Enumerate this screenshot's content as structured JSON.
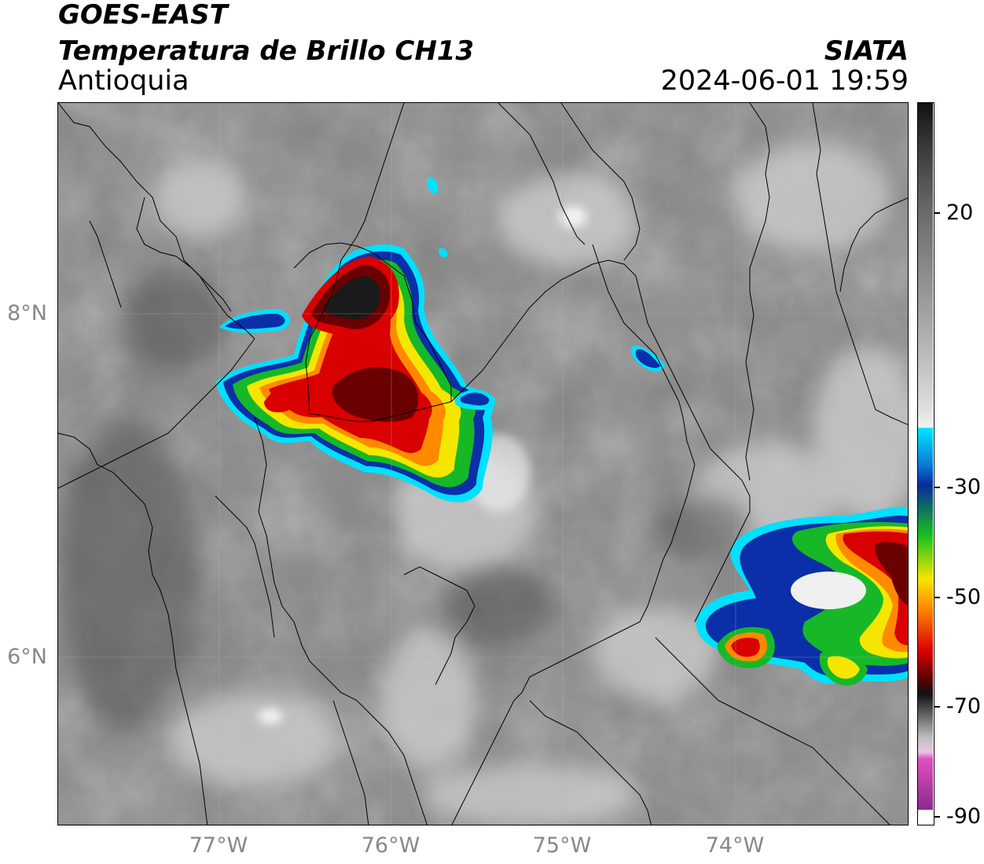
{
  "header": {
    "satellite": "GOES-EAST",
    "product": "Temperatura de Brillo CH13",
    "region": "Antioquia",
    "agency": "SIATA",
    "timestamp": "2024-06-01 19:59"
  },
  "map": {
    "longitude_labels": [
      "77°W",
      "76°W",
      "75°W",
      "74°W"
    ],
    "latitude_labels": [
      "8°N",
      "6°N"
    ]
  },
  "colorbar": {
    "labels": [
      "20",
      "-30",
      "-50",
      "-70",
      "-90"
    ],
    "colors": {
      "warm_gray": "#7a7a7a",
      "white": "#f2f2f2",
      "cyan": "#00e5ff",
      "blue": "#0a2a9c",
      "green": "#18c020",
      "yellow": "#f5e600",
      "orange": "#ff8a00",
      "red": "#d80000",
      "dark_red": "#5a0000",
      "black": "#111111",
      "magenta": "#c23bb3"
    }
  }
}
